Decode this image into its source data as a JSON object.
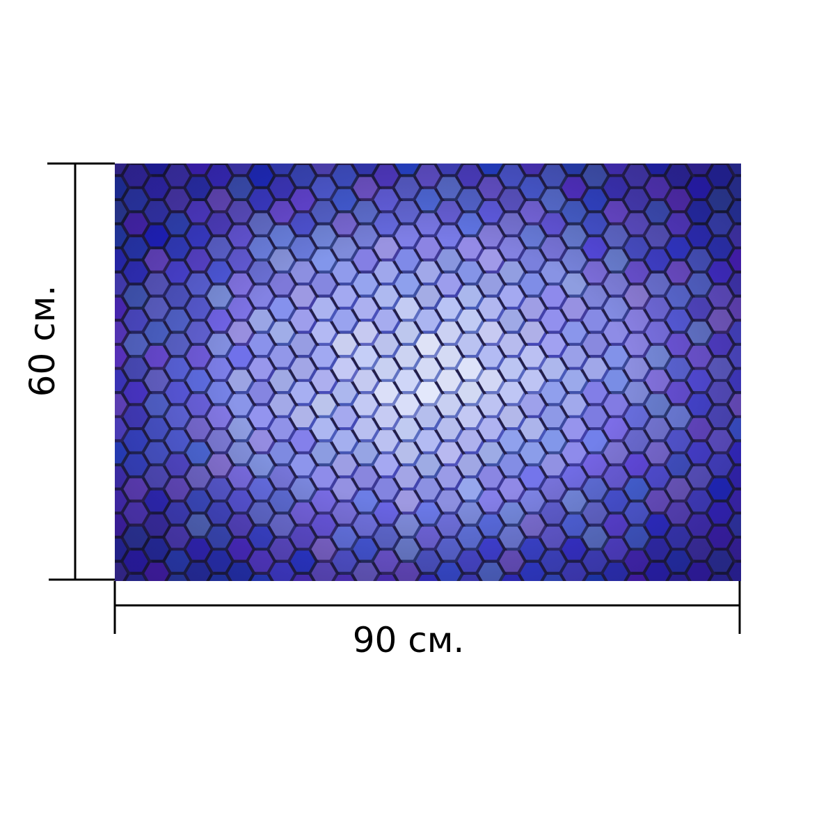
{
  "width_label": "90 см.",
  "height_label": "60 см."
}
